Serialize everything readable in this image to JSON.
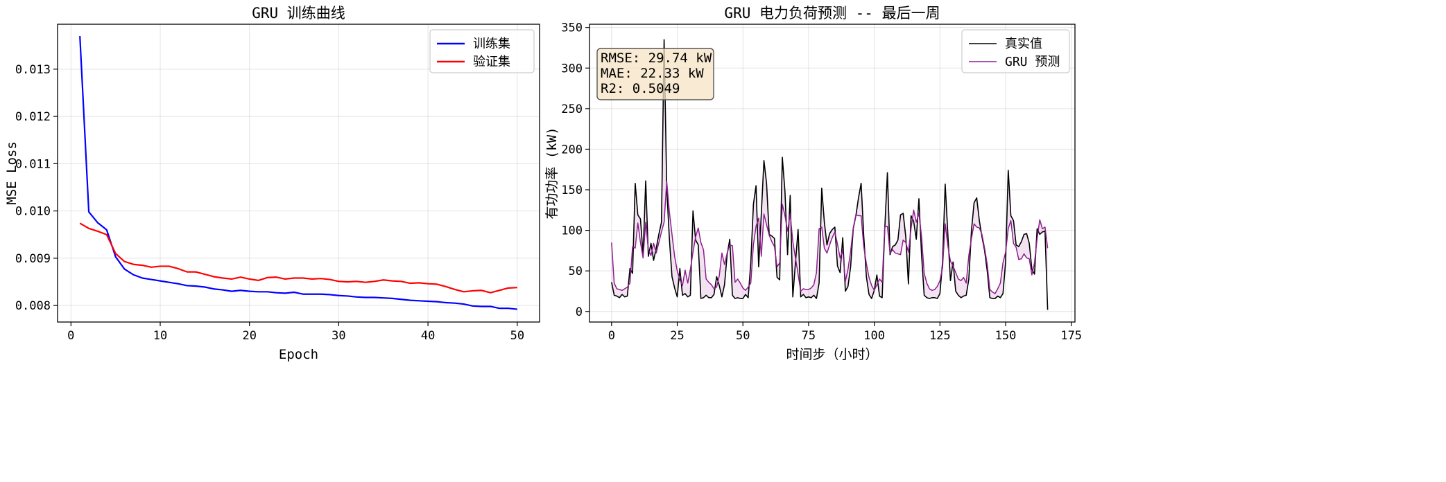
{
  "chart_data": [
    {
      "type": "line",
      "title": "GRU 训练曲线",
      "xlabel": "Epoch",
      "ylabel": "MSE Loss",
      "xlim": [
        -1.5,
        52.5
      ],
      "ylim": [
        0.00765,
        0.01395
      ],
      "xticks": [
        "0",
        "10",
        "20",
        "30",
        "40",
        "50"
      ],
      "yticks": [
        "0.008",
        "0.009",
        "0.010",
        "0.011",
        "0.012",
        "0.013"
      ],
      "grid": true,
      "legend_position": "top-right",
      "x": [
        1,
        2,
        3,
        4,
        5,
        6,
        7,
        8,
        9,
        10,
        11,
        12,
        13,
        14,
        15,
        16,
        17,
        18,
        19,
        20,
        21,
        22,
        23,
        24,
        25,
        26,
        27,
        28,
        29,
        30,
        31,
        32,
        33,
        34,
        35,
        36,
        37,
        38,
        39,
        40,
        41,
        42,
        43,
        44,
        45,
        46,
        47,
        48,
        49,
        50
      ],
      "series": [
        {
          "name": "训练集",
          "color": "#0000ff",
          "values": [
            0.0137,
            0.00998,
            0.00975,
            0.0096,
            0.00903,
            0.00877,
            0.00865,
            0.00858,
            0.00855,
            0.00852,
            0.00849,
            0.00846,
            0.00842,
            0.00841,
            0.00839,
            0.00835,
            0.00833,
            0.0083,
            0.00832,
            0.0083,
            0.00829,
            0.00829,
            0.00827,
            0.00826,
            0.00828,
            0.00824,
            0.00824,
            0.00824,
            0.00823,
            0.00821,
            0.0082,
            0.00818,
            0.00817,
            0.00817,
            0.00816,
            0.00815,
            0.00813,
            0.00811,
            0.0081,
            0.00809,
            0.00808,
            0.00806,
            0.00805,
            0.00803,
            0.00799,
            0.00798,
            0.00798,
            0.00794,
            0.00794,
            0.00792
          ]
        },
        {
          "name": "验证集",
          "color": "#ff0000",
          "values": [
            0.00974,
            0.00963,
            0.00957,
            0.0095,
            0.0091,
            0.00893,
            0.00887,
            0.00885,
            0.00881,
            0.00883,
            0.00883,
            0.00878,
            0.00871,
            0.00871,
            0.00866,
            0.00861,
            0.00858,
            0.00856,
            0.0086,
            0.00856,
            0.00853,
            0.00859,
            0.0086,
            0.00856,
            0.00858,
            0.00858,
            0.00856,
            0.00857,
            0.00855,
            0.00851,
            0.0085,
            0.00851,
            0.00849,
            0.00851,
            0.00854,
            0.00852,
            0.00851,
            0.00847,
            0.00848,
            0.00846,
            0.00845,
            0.0084,
            0.00834,
            0.00829,
            0.00831,
            0.00832,
            0.00827,
            0.00832,
            0.00837,
            0.00838
          ]
        }
      ]
    },
    {
      "type": "line",
      "title": "GRU 电力负荷预测 -- 最后一周",
      "xlabel": "时间步（小时）",
      "ylabel": "有功功率 (kW)",
      "xlim": [
        -8.4,
        176.4
      ],
      "ylim": [
        -13,
        354
      ],
      "xticks": [
        "0",
        "25",
        "50",
        "75",
        "100",
        "125",
        "150",
        "175"
      ],
      "yticks": [
        "0",
        "50",
        "100",
        "150",
        "200",
        "250",
        "300",
        "350"
      ],
      "grid": true,
      "legend_position": "top-right",
      "fill_between": true,
      "annotation": {
        "lines": [
          "RMSE: 29.74 kW",
          "MAE: 22.33 kW",
          "R2: 0.5049"
        ],
        "position": "top-left",
        "background": "#f5e3c4"
      },
      "series": [
        {
          "name": "真实值",
          "color": "#000000",
          "values": [
            36,
            20,
            19,
            17,
            21,
            18,
            19,
            53,
            47,
            158,
            119,
            114,
            70,
            161,
            68,
            84,
            63,
            78,
            95,
            110,
            335,
            152,
            90,
            43,
            29,
            18,
            53,
            20,
            22,
            18,
            20,
            124,
            88,
            82,
            16,
            17,
            20,
            17,
            17,
            21,
            43,
            32,
            18,
            33,
            70,
            89,
            20,
            16,
            17,
            16,
            16,
            21,
            17,
            60,
            132,
            155,
            55,
            120,
            186,
            158,
            95,
            93,
            90,
            42,
            39,
            190,
            148,
            70,
            143,
            18,
            60,
            101,
            18,
            21,
            17,
            18,
            17,
            20,
            16,
            35,
            152,
            110,
            82,
            96,
            101,
            104,
            56,
            48,
            91,
            25,
            31,
            55,
            102,
            118,
            140,
            158,
            93,
            43,
            21,
            16,
            26,
            45,
            19,
            17,
            102,
            171,
            70,
            80,
            82,
            88,
            119,
            121,
            92,
            34,
            118,
            111,
            89,
            139,
            70,
            20,
            17,
            16,
            17,
            17,
            16,
            22,
            61,
            157,
            96,
            38,
            61,
            25,
            20,
            17,
            19,
            20,
            40,
            100,
            134,
            140,
            112,
            92,
            75,
            50,
            17,
            16,
            16,
            19,
            17,
            22,
            61,
            174,
            118,
            112,
            82,
            80,
            86,
            95,
            96,
            84,
            52,
            46,
            102,
            95,
            98,
            99,
            2
          ]
        },
        {
          "name": "GRU 预测",
          "color": "#8e1e8e",
          "values": [
            85,
            35,
            28,
            27,
            26,
            28,
            30,
            35,
            80,
            78,
            109,
            85,
            66,
            110,
            76,
            69,
            84,
            72,
            85,
            98,
            110,
            160,
            123,
            95,
            68,
            50,
            39,
            32,
            51,
            35,
            52,
            73,
            92,
            103,
            85,
            76,
            40,
            36,
            33,
            28,
            30,
            44,
            72,
            58,
            72,
            82,
            81,
            36,
            40,
            35,
            29,
            26,
            30,
            35,
            82,
            105,
            115,
            68,
            120,
            107,
            94,
            86,
            80,
            55,
            60,
            132,
            118,
            99,
            120,
            86,
            66,
            46,
            25,
            28,
            27,
            27,
            29,
            33,
            48,
            102,
            104,
            78,
            72,
            82,
            91,
            98,
            83,
            66,
            75,
            37,
            52,
            74,
            103,
            119,
            118,
            118,
            80,
            59,
            42,
            32,
            26,
            33,
            40,
            36,
            104,
            105,
            72,
            76,
            72,
            71,
            70,
            88,
            85,
            73,
            102,
            125,
            110,
            121,
            93,
            47,
            35,
            28,
            26,
            27,
            31,
            38,
            54,
            108,
            81,
            62,
            56,
            48,
            40,
            38,
            42,
            35,
            69,
            90,
            108,
            104,
            103,
            95,
            78,
            58,
            27,
            24,
            22,
            28,
            35,
            60,
            73,
            102,
            112,
            84,
            79,
            64,
            65,
            71,
            66,
            65,
            45,
            60,
            90,
            113,
            102,
            104,
            78
          ]
        }
      ]
    }
  ]
}
